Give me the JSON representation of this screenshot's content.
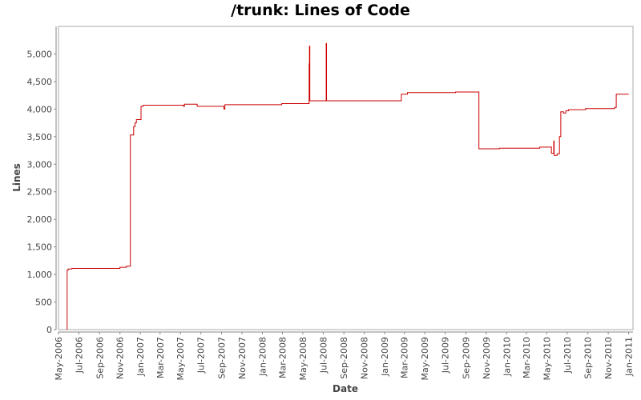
{
  "chart_data": {
    "type": "line",
    "title": "/trunk: Lines of Code",
    "xlabel": "Date",
    "ylabel": "Lines",
    "ylim": [
      0,
      5500
    ],
    "xlim": [
      "2006-05-01",
      "2011-01-14"
    ],
    "grid": false,
    "colors": {
      "line": "#cc0000",
      "axis": "#888888",
      "frame": "#aaaaaa"
    },
    "y_ticks": [
      0,
      500,
      1000,
      1500,
      2000,
      2500,
      3000,
      3500,
      4000,
      4500,
      5000
    ],
    "y_tick_labels": [
      "0",
      "500",
      "1,000",
      "1,500",
      "2,000",
      "2,500",
      "3,000",
      "3,500",
      "4,000",
      "4,500",
      "5,000"
    ],
    "x_ticks": [
      "2006-05-01",
      "2006-07-01",
      "2006-09-01",
      "2006-11-01",
      "2007-01-01",
      "2007-03-01",
      "2007-05-01",
      "2007-07-01",
      "2007-09-01",
      "2007-11-01",
      "2008-01-01",
      "2008-03-01",
      "2008-05-01",
      "2008-07-01",
      "2008-09-01",
      "2008-11-01",
      "2009-01-01",
      "2009-03-01",
      "2009-05-01",
      "2009-07-01",
      "2009-09-01",
      "2009-11-01",
      "2010-01-01",
      "2010-03-01",
      "2010-05-01",
      "2010-07-01",
      "2010-09-01",
      "2010-11-01",
      "2011-01-01"
    ],
    "x_tick_labels": [
      "May-2006",
      "Jul-2006",
      "Sep-2006",
      "Nov-2006",
      "Jan-2007",
      "Mar-2007",
      "May-2007",
      "Jul-2007",
      "Sep-2007",
      "Nov-2007",
      "Jan-2008",
      "Mar-2008",
      "May-2008",
      "Jul-2008",
      "Sep-2008",
      "Nov-2008",
      "Jan-2009",
      "Mar-2009",
      "May-2009",
      "Jul-2009",
      "Sep-2009",
      "Nov-2009",
      "Jan-2010",
      "Mar-2010",
      "May-2010",
      "Jul-2010",
      "Sep-2010",
      "Nov-2010",
      "Jan-2011"
    ],
    "series": [
      {
        "points": [
          [
            "2006-05-27",
            0
          ],
          [
            "2006-05-27",
            1080
          ],
          [
            "2006-05-30",
            1080
          ],
          [
            "2006-05-30",
            1100
          ],
          [
            "2006-06-10",
            1100
          ],
          [
            "2006-06-10",
            1110
          ],
          [
            "2006-11-01",
            1110
          ],
          [
            "2006-11-01",
            1130
          ],
          [
            "2006-11-20",
            1130
          ],
          [
            "2006-11-20",
            1150
          ],
          [
            "2006-12-02",
            1150
          ],
          [
            "2006-12-02",
            3530
          ],
          [
            "2006-12-12",
            3530
          ],
          [
            "2006-12-12",
            3680
          ],
          [
            "2006-12-16",
            3680
          ],
          [
            "2006-12-16",
            3750
          ],
          [
            "2006-12-20",
            3750
          ],
          [
            "2006-12-20",
            3810
          ],
          [
            "2007-01-03",
            3810
          ],
          [
            "2007-01-03",
            4050
          ],
          [
            "2007-01-10",
            4050
          ],
          [
            "2007-01-10",
            4070
          ],
          [
            "2007-05-10",
            4070
          ],
          [
            "2007-05-10",
            4050
          ],
          [
            "2007-05-13",
            4050
          ],
          [
            "2007-05-13",
            4090
          ],
          [
            "2007-06-20",
            4090
          ],
          [
            "2007-06-20",
            4050
          ],
          [
            "2007-09-08",
            4050
          ],
          [
            "2007-09-08",
            4000
          ],
          [
            "2007-09-11",
            4000
          ],
          [
            "2007-09-11",
            4080
          ],
          [
            "2008-02-28",
            4080
          ],
          [
            "2008-02-28",
            4100
          ],
          [
            "2008-05-20",
            4100
          ],
          [
            "2008-05-20",
            4820
          ],
          [
            "2008-05-21",
            4820
          ],
          [
            "2008-05-21",
            5140
          ],
          [
            "2008-05-22",
            5140
          ],
          [
            "2008-05-22",
            4150
          ],
          [
            "2008-07-10",
            4150
          ],
          [
            "2008-07-10",
            5190
          ],
          [
            "2008-07-11",
            5190
          ],
          [
            "2008-07-11",
            4150
          ],
          [
            "2009-02-20",
            4150
          ],
          [
            "2009-02-20",
            4270
          ],
          [
            "2009-03-10",
            4270
          ],
          [
            "2009-03-10",
            4300
          ],
          [
            "2009-08-01",
            4300
          ],
          [
            "2009-08-01",
            4310
          ],
          [
            "2009-10-10",
            4310
          ],
          [
            "2009-10-10",
            3280
          ],
          [
            "2009-12-10",
            3280
          ],
          [
            "2009-12-10",
            3290
          ],
          [
            "2010-04-10",
            3290
          ],
          [
            "2010-04-10",
            3310
          ],
          [
            "2010-05-15",
            3310
          ],
          [
            "2010-05-15",
            3200
          ],
          [
            "2010-05-22",
            3200
          ],
          [
            "2010-05-22",
            3420
          ],
          [
            "2010-05-23",
            3420
          ],
          [
            "2010-05-23",
            3160
          ],
          [
            "2010-06-01",
            3160
          ],
          [
            "2010-06-01",
            3190
          ],
          [
            "2010-06-08",
            3190
          ],
          [
            "2010-06-08",
            3500
          ],
          [
            "2010-06-12",
            3500
          ],
          [
            "2010-06-12",
            3950
          ],
          [
            "2010-06-20",
            3950
          ],
          [
            "2010-06-20",
            3930
          ],
          [
            "2010-06-27",
            3930
          ],
          [
            "2010-06-27",
            3970
          ],
          [
            "2010-07-05",
            3970
          ],
          [
            "2010-07-05",
            3990
          ],
          [
            "2010-08-25",
            3990
          ],
          [
            "2010-08-25",
            4010
          ],
          [
            "2010-11-20",
            4010
          ],
          [
            "2010-11-20",
            4030
          ],
          [
            "2010-11-25",
            4030
          ],
          [
            "2010-11-25",
            4270
          ],
          [
            "2011-01-01",
            4270
          ]
        ]
      }
    ]
  }
}
